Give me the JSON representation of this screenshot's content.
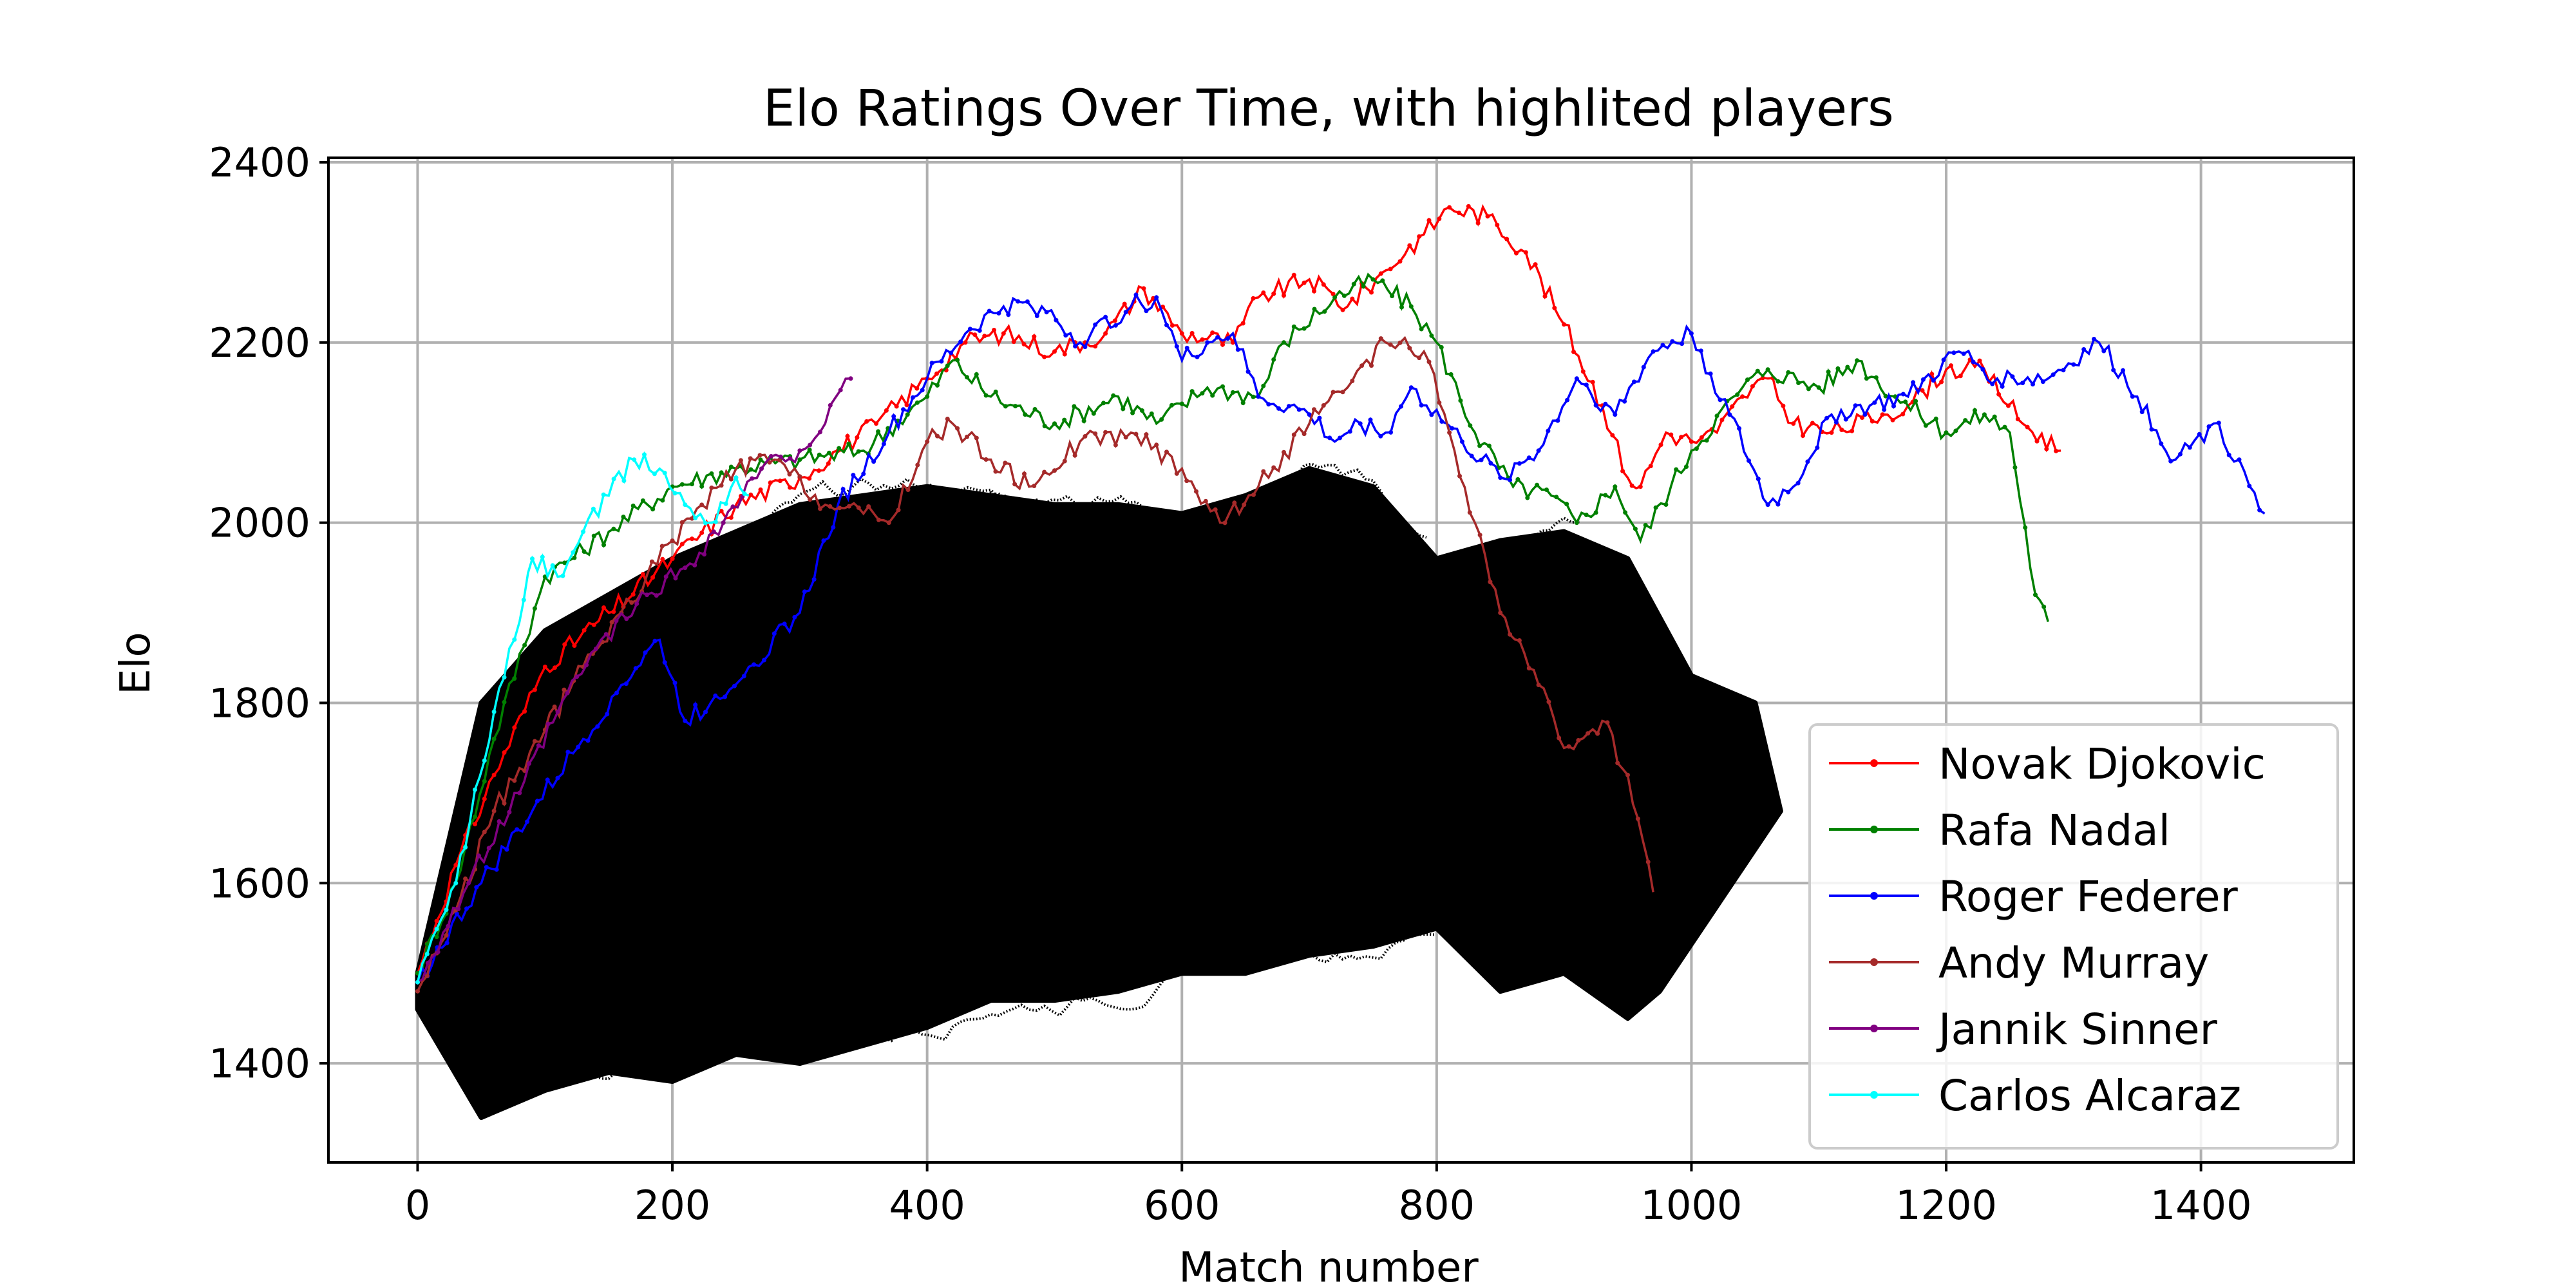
{
  "chart_data": {
    "type": "line",
    "title": "Elo Ratings Over Time, with highlited players",
    "xlabel": "Match number",
    "ylabel": "Elo",
    "xlim": [
      -70,
      1520
    ],
    "ylim": [
      1290,
      2405
    ],
    "x_ticks": [
      0,
      200,
      400,
      600,
      800,
      1000,
      1200,
      1400
    ],
    "y_ticks": [
      1400,
      1600,
      1800,
      2000,
      2200,
      2400
    ],
    "grid": true,
    "legend_position": "lower-right",
    "background_players": {
      "color": "#000000",
      "description_note": "many unlabeled players",
      "upper_envelope": [
        [
          0,
          1500
        ],
        [
          50,
          1800
        ],
        [
          100,
          1880
        ],
        [
          150,
          1920
        ],
        [
          200,
          1960
        ],
        [
          250,
          1990
        ],
        [
          300,
          2020
        ],
        [
          350,
          2030
        ],
        [
          400,
          2040
        ],
        [
          450,
          2030
        ],
        [
          500,
          2020
        ],
        [
          550,
          2020
        ],
        [
          600,
          2010
        ],
        [
          650,
          2030
        ],
        [
          700,
          2060
        ],
        [
          750,
          2040
        ],
        [
          800,
          1960
        ],
        [
          850,
          1980
        ],
        [
          900,
          1990
        ],
        [
          950,
          1960
        ],
        [
          1000,
          1830
        ],
        [
          1050,
          1800
        ],
        [
          1070,
          1680
        ]
      ],
      "lower_envelope": [
        [
          0,
          1460
        ],
        [
          50,
          1340
        ],
        [
          100,
          1370
        ],
        [
          150,
          1390
        ],
        [
          200,
          1380
        ],
        [
          250,
          1410
        ],
        [
          300,
          1400
        ],
        [
          350,
          1420
        ],
        [
          400,
          1440
        ],
        [
          450,
          1470
        ],
        [
          500,
          1470
        ],
        [
          550,
          1480
        ],
        [
          600,
          1500
        ],
        [
          650,
          1500
        ],
        [
          700,
          1520
        ],
        [
          750,
          1530
        ],
        [
          800,
          1550
        ],
        [
          850,
          1480
        ],
        [
          900,
          1500
        ],
        [
          950,
          1450
        ],
        [
          975,
          1480
        ]
      ]
    },
    "series": [
      {
        "name": "Novak Djokovic",
        "color": "#ff0000",
        "points": [
          [
            0,
            1500
          ],
          [
            30,
            1620
          ],
          [
            60,
            1720
          ],
          [
            100,
            1840
          ],
          [
            150,
            1900
          ],
          [
            200,
            1960
          ],
          [
            250,
            2020
          ],
          [
            300,
            2050
          ],
          [
            330,
            2080
          ],
          [
            360,
            2110
          ],
          [
            400,
            2160
          ],
          [
            430,
            2200
          ],
          [
            460,
            2210
          ],
          [
            500,
            2190
          ],
          [
            540,
            2210
          ],
          [
            570,
            2260
          ],
          [
            600,
            2210
          ],
          [
            640,
            2200
          ],
          [
            660,
            2250
          ],
          [
            700,
            2270
          ],
          [
            730,
            2240
          ],
          [
            760,
            2280
          ],
          [
            790,
            2320
          ],
          [
            810,
            2350
          ],
          [
            840,
            2340
          ],
          [
            870,
            2300
          ],
          [
            900,
            2220
          ],
          [
            930,
            2130
          ],
          [
            950,
            2050
          ],
          [
            960,
            2040
          ],
          [
            980,
            2100
          ],
          [
            1000,
            2090
          ],
          [
            1020,
            2100
          ],
          [
            1040,
            2140
          ],
          [
            1060,
            2160
          ],
          [
            1080,
            2110
          ],
          [
            1110,
            2100
          ],
          [
            1150,
            2120
          ],
          [
            1170,
            2130
          ],
          [
            1200,
            2170
          ],
          [
            1230,
            2170
          ],
          [
            1260,
            2110
          ],
          [
            1290,
            2080
          ]
        ]
      },
      {
        "name": "Rafa Nadal",
        "color": "#008000",
        "points": [
          [
            0,
            1500
          ],
          [
            30,
            1600
          ],
          [
            60,
            1760
          ],
          [
            100,
            1940
          ],
          [
            150,
            1990
          ],
          [
            200,
            2040
          ],
          [
            250,
            2060
          ],
          [
            300,
            2070
          ],
          [
            350,
            2080
          ],
          [
            400,
            2140
          ],
          [
            420,
            2180
          ],
          [
            450,
            2140
          ],
          [
            500,
            2110
          ],
          [
            550,
            2140
          ],
          [
            580,
            2110
          ],
          [
            620,
            2150
          ],
          [
            660,
            2140
          ],
          [
            680,
            2200
          ],
          [
            720,
            2250
          ],
          [
            750,
            2270
          ],
          [
            780,
            2240
          ],
          [
            800,
            2200
          ],
          [
            830,
            2100
          ],
          [
            860,
            2040
          ],
          [
            890,
            2030
          ],
          [
            910,
            2000
          ],
          [
            940,
            2040
          ],
          [
            960,
            1980
          ],
          [
            1000,
            2080
          ],
          [
            1040,
            2150
          ],
          [
            1060,
            2170
          ],
          [
            1100,
            2150
          ],
          [
            1130,
            2180
          ],
          [
            1160,
            2140
          ],
          [
            1200,
            2100
          ],
          [
            1230,
            2120
          ],
          [
            1250,
            2100
          ],
          [
            1270,
            1920
          ],
          [
            1280,
            1890
          ]
        ]
      },
      {
        "name": "Roger Federer",
        "color": "#0000ff",
        "points": [
          [
            0,
            1490
          ],
          [
            50,
            1600
          ],
          [
            90,
            1680
          ],
          [
            130,
            1760
          ],
          [
            160,
            1820
          ],
          [
            190,
            1870
          ],
          [
            210,
            1780
          ],
          [
            230,
            1800
          ],
          [
            260,
            1840
          ],
          [
            300,
            1900
          ],
          [
            330,
            2020
          ],
          [
            370,
            2100
          ],
          [
            400,
            2160
          ],
          [
            430,
            2210
          ],
          [
            460,
            2240
          ],
          [
            490,
            2240
          ],
          [
            520,
            2200
          ],
          [
            560,
            2240
          ],
          [
            580,
            2250
          ],
          [
            600,
            2180
          ],
          [
            620,
            2200
          ],
          [
            640,
            2210
          ],
          [
            660,
            2140
          ],
          [
            700,
            2120
          ],
          [
            720,
            2090
          ],
          [
            740,
            2110
          ],
          [
            760,
            2100
          ],
          [
            780,
            2150
          ],
          [
            820,
            2090
          ],
          [
            850,
            2050
          ],
          [
            880,
            2080
          ],
          [
            910,
            2160
          ],
          [
            940,
            2120
          ],
          [
            970,
            2190
          ],
          [
            1000,
            2210
          ],
          [
            1030,
            2120
          ],
          [
            1060,
            2020
          ],
          [
            1080,
            2040
          ],
          [
            1110,
            2120
          ],
          [
            1140,
            2130
          ],
          [
            1170,
            2140
          ],
          [
            1210,
            2190
          ],
          [
            1240,
            2160
          ],
          [
            1280,
            2160
          ],
          [
            1320,
            2200
          ],
          [
            1350,
            2140
          ],
          [
            1380,
            2070
          ],
          [
            1410,
            2110
          ],
          [
            1430,
            2070
          ],
          [
            1450,
            2010
          ]
        ]
      },
      {
        "name": "Andy Murray",
        "color": "#a52a2a",
        "points": [
          [
            0,
            1480
          ],
          [
            30,
            1570
          ],
          [
            60,
            1680
          ],
          [
            100,
            1770
          ],
          [
            130,
            1840
          ],
          [
            160,
            1900
          ],
          [
            200,
            1980
          ],
          [
            250,
            2060
          ],
          [
            280,
            2070
          ],
          [
            320,
            2020
          ],
          [
            350,
            2010
          ],
          [
            370,
            2000
          ],
          [
            400,
            2090
          ],
          [
            420,
            2110
          ],
          [
            450,
            2070
          ],
          [
            480,
            2040
          ],
          [
            520,
            2090
          ],
          [
            560,
            2100
          ],
          [
            600,
            2060
          ],
          [
            630,
            2000
          ],
          [
            660,
            2040
          ],
          [
            700,
            2110
          ],
          [
            730,
            2150
          ],
          [
            760,
            2200
          ],
          [
            790,
            2190
          ],
          [
            810,
            2100
          ],
          [
            830,
            2000
          ],
          [
            850,
            1900
          ],
          [
            880,
            1820
          ],
          [
            900,
            1750
          ],
          [
            930,
            1780
          ],
          [
            950,
            1720
          ],
          [
            970,
            1590
          ]
        ]
      },
      {
        "name": "Jannik Sinner",
        "color": "#800080",
        "points": [
          [
            0,
            1490
          ],
          [
            40,
            1600
          ],
          [
            80,
            1700
          ],
          [
            110,
            1790
          ],
          [
            140,
            1860
          ],
          [
            180,
            1920
          ],
          [
            210,
            1950
          ],
          [
            240,
            2000
          ],
          [
            270,
            2060
          ],
          [
            300,
            2080
          ],
          [
            320,
            2110
          ],
          [
            340,
            2160
          ]
        ]
      },
      {
        "name": "Carlos Alcaraz",
        "color": "#00ffff",
        "points": [
          [
            0,
            1490
          ],
          [
            30,
            1600
          ],
          [
            60,
            1790
          ],
          [
            80,
            1890
          ],
          [
            90,
            1960
          ],
          [
            110,
            1940
          ],
          [
            130,
            1990
          ],
          [
            150,
            2030
          ],
          [
            170,
            2070
          ],
          [
            190,
            2060
          ],
          [
            210,
            2020
          ],
          [
            230,
            2000
          ],
          [
            250,
            2050
          ],
          [
            260,
            2030
          ]
        ]
      }
    ]
  }
}
